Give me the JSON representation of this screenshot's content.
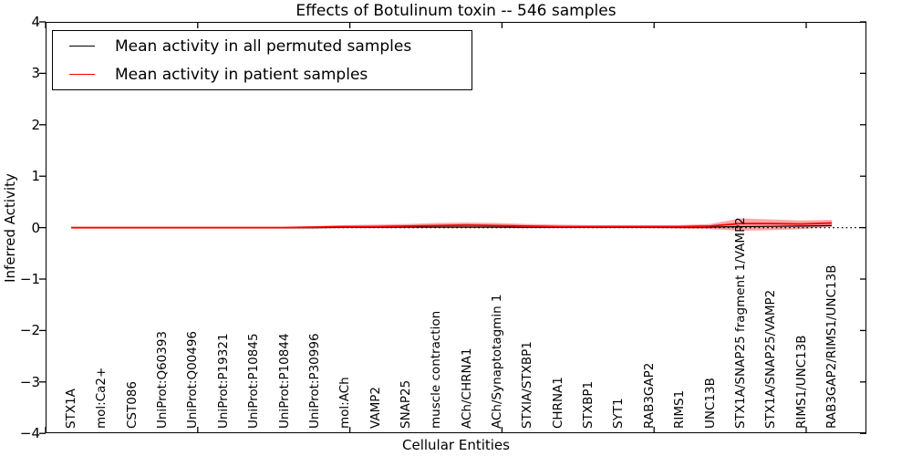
{
  "title": "Effects of Botulinum toxin -- 546 samples",
  "colors": {
    "background": "#ffffff",
    "axis": "#000000",
    "permuted_line": "#000000",
    "patient_line": "#ff0000",
    "patient_band": "rgba(255,0,0,0.35)"
  },
  "legend": {
    "position": "upper-left",
    "entries": [
      "Mean activity in all permuted samples",
      "Mean activity in patient samples"
    ]
  },
  "chart_data": {
    "type": "line",
    "title": "Effects of Botulinum toxin -- 546 samples",
    "xlabel": "Cellular Entities",
    "ylabel": "Inferred Activity",
    "ylim": [
      -4,
      4
    ],
    "yticks": [
      4,
      3,
      2,
      1,
      0,
      -1,
      -2,
      -3,
      -4
    ],
    "grid": false,
    "legend_position": "upper left",
    "zero_line": {
      "y": 0,
      "style": "dotted",
      "color": "#000000"
    },
    "categories": [
      "STX1A",
      "mol:Ca2+",
      "CST086",
      "UniProt:Q60393",
      "UniProt:Q00496",
      "UniProt:P19321",
      "UniProt:P10845",
      "UniProt:P10844",
      "UniProt:P30996",
      "mol:ACh",
      "VAMP2",
      "SNAP25",
      "muscle contraction",
      "ACh/CHRNA1",
      "ACh/Synaptotagmin 1",
      "STXIA/STXBP1",
      "CHRNA1",
      "STXBP1",
      "SYT1",
      "RAB3GAP2",
      "RIMS1",
      "UNC13B",
      "STX1A/SNAP25 fragment 1/VAMP2",
      "STX1A/SNAP25/VAMP2",
      "RIMS1/UNC13B",
      "RAB3GAP2/RIMS1/UNC13B"
    ],
    "series": [
      {
        "name": "Mean activity in all permuted samples",
        "color": "#000000",
        "values": [
          0,
          0,
          0,
          0,
          0,
          0,
          0,
          0,
          0,
          0.005,
          0.005,
          0.01,
          0.01,
          0.01,
          0.01,
          0.005,
          0.005,
          0.005,
          0.005,
          0.005,
          0.005,
          0.01,
          0.02,
          0.025,
          0.03,
          0.04
        ]
      },
      {
        "name": "Mean activity in patient samples",
        "color": "#ff0000",
        "band_fill": "rgba(255,0,0,0.35)",
        "values": [
          0,
          0,
          0,
          0,
          0,
          0,
          0,
          0,
          0.01,
          0.02,
          0.02,
          0.03,
          0.04,
          0.05,
          0.04,
          0.03,
          0.02,
          0.02,
          0.02,
          0.02,
          0.02,
          0.03,
          0.08,
          0.08,
          0.07,
          0.09
        ],
        "band_upper": [
          0.02,
          0.02,
          0.02,
          0.02,
          0.02,
          0.02,
          0.02,
          0.02,
          0.03,
          0.05,
          0.06,
          0.07,
          0.09,
          0.1,
          0.09,
          0.07,
          0.06,
          0.05,
          0.05,
          0.05,
          0.05,
          0.07,
          0.18,
          0.16,
          0.14,
          0.15
        ],
        "band_lower": [
          -0.02,
          -0.02,
          -0.02,
          -0.02,
          -0.02,
          -0.02,
          -0.02,
          -0.02,
          -0.02,
          -0.01,
          -0.01,
          -0.01,
          -0.01,
          -0.01,
          -0.01,
          -0.01,
          -0.01,
          -0.01,
          -0.01,
          -0.01,
          -0.02,
          -0.03,
          -0.06,
          -0.05,
          -0.03,
          0.02
        ]
      }
    ]
  }
}
